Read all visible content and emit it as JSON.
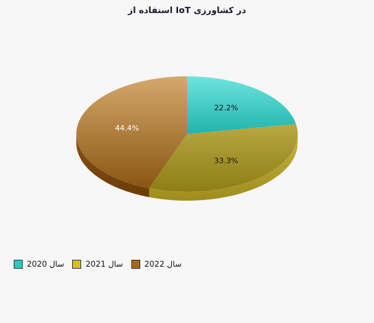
{
  "chart_data": {
    "type": "pie",
    "title": "در کشاورزی IoT استفاده از",
    "categories": [
      "سال 2020",
      "سال 2021",
      "سال 2022"
    ],
    "values": [
      22.2,
      33.3,
      44.4
    ],
    "labels": [
      "22.2%",
      "33.3%",
      "44.4%"
    ],
    "colors": [
      "#2ec9c1",
      "#d8c01c",
      "#a8691d"
    ],
    "legend_position": "bottom-left"
  }
}
